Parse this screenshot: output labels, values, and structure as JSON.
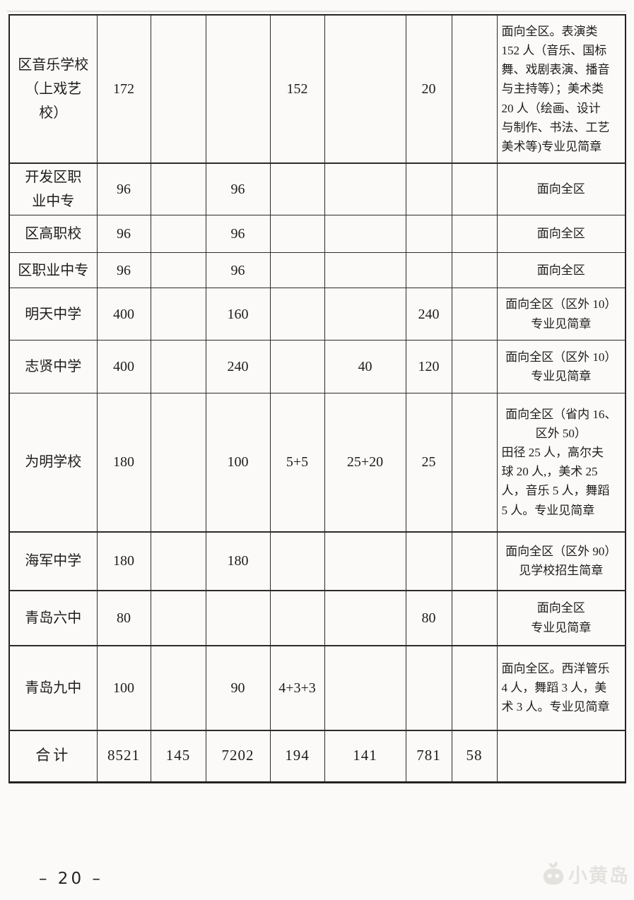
{
  "page": {
    "page_number": "– 20 –",
    "watermark_text": "小黄岛"
  },
  "table": {
    "rows": [
      {
        "school": "区音乐学校\n（上戏艺\n校）",
        "values": [
          "172",
          "",
          "",
          "152",
          "",
          "20",
          ""
        ],
        "note_segments": [
          {
            "align": "left",
            "text": "面向全区。表演类\n152 人（音乐、国标\n舞、戏剧表演、播音\n与主持等）；美术类\n20 人（绘画、设计\n与制作、书法、工艺\n美术等)专业见简章"
          }
        ]
      },
      {
        "school": "开发区职\n业中专",
        "values": [
          "96",
          "",
          "96",
          "",
          "",
          "",
          ""
        ],
        "note_segments": [
          {
            "align": "center",
            "text": "面向全区"
          }
        ]
      },
      {
        "school": "区高职校",
        "values": [
          "96",
          "",
          "96",
          "",
          "",
          "",
          ""
        ],
        "note_segments": [
          {
            "align": "center",
            "text": "面向全区"
          }
        ]
      },
      {
        "school": "区职业中专",
        "values": [
          "96",
          "",
          "96",
          "",
          "",
          "",
          ""
        ],
        "note_segments": [
          {
            "align": "center",
            "text": "面向全区"
          }
        ]
      },
      {
        "school": "明天中学",
        "values": [
          "400",
          "",
          "160",
          "",
          "",
          "240",
          ""
        ],
        "note_segments": [
          {
            "align": "center",
            "text": "面向全区（区外 10）\n专业见简章"
          }
        ]
      },
      {
        "school": "志贤中学",
        "values": [
          "400",
          "",
          "240",
          "",
          "40",
          "120",
          ""
        ],
        "note_segments": [
          {
            "align": "center",
            "text": "面向全区（区外 10）\n专业见简章"
          }
        ]
      },
      {
        "school": "为明学校",
        "values": [
          "180",
          "",
          "100",
          "5+5",
          "25+20",
          "25",
          ""
        ],
        "note_segments": [
          {
            "align": "center",
            "text": "面向全区（省内 16、\n区外 50）"
          },
          {
            "align": "left",
            "text": "田径 25 人，高尔夫\n球 20 人,，美术 25\n人，音乐 5 人，舞蹈\n5 人。专业见简章"
          }
        ]
      },
      {
        "school": "海军中学",
        "values": [
          "180",
          "",
          "180",
          "",
          "",
          "",
          ""
        ],
        "note_segments": [
          {
            "align": "center",
            "text": "面向全区（区外 90）\n见学校招生简章"
          }
        ]
      },
      {
        "school": "青岛六中",
        "values": [
          "80",
          "",
          "",
          "",
          "",
          "80",
          ""
        ],
        "note_segments": [
          {
            "align": "center",
            "text": "面向全区\n专业见简章"
          }
        ]
      },
      {
        "school": "青岛九中",
        "values": [
          "100",
          "",
          "90",
          "4+3+3",
          "",
          "",
          ""
        ],
        "note_segments": [
          {
            "align": "left",
            "text": "面向全区。西洋管乐\n4 人，舞蹈 3 人，美\n术 3 人。专业见简章"
          }
        ]
      },
      {
        "school": "合计",
        "values": [
          "8521",
          "145",
          "7202",
          "194",
          "141",
          "781",
          "58"
        ],
        "note_segments": [],
        "is_total": true
      }
    ]
  }
}
